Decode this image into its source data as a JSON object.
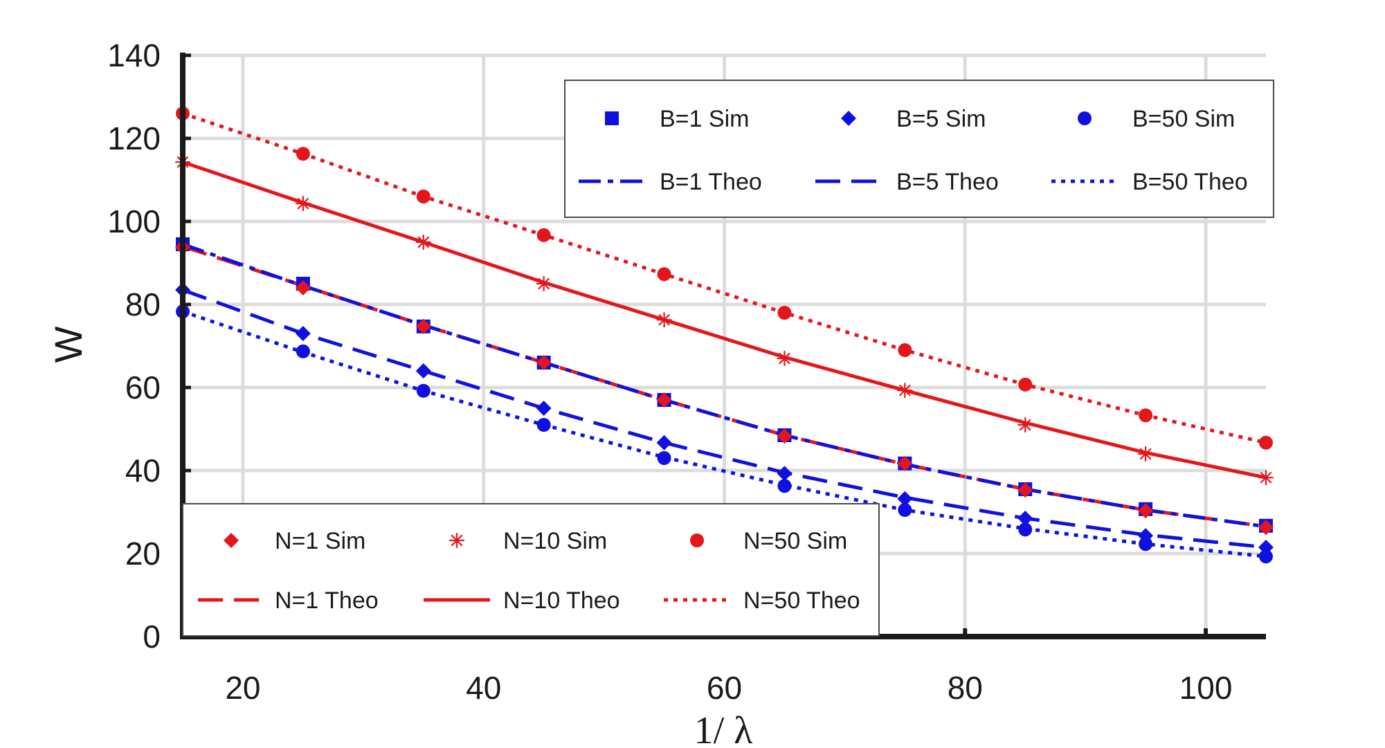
{
  "chart_data": {
    "type": "line",
    "title": "",
    "xlabel": "1/ λ",
    "ylabel": "W",
    "xlim": [
      15,
      105
    ],
    "ylim": [
      0,
      140
    ],
    "grid": true,
    "xticks": [
      20,
      40,
      60,
      80,
      100
    ],
    "yticks": [
      0,
      20,
      40,
      60,
      80,
      100,
      120,
      140
    ],
    "x": [
      15,
      25,
      35,
      45,
      55,
      65,
      75,
      85,
      95,
      105
    ],
    "colors": {
      "red": "#e4161b",
      "blue": "#1010e0"
    },
    "series": [
      {
        "name": "B=1 Sim",
        "color": "blue",
        "marker": "square",
        "values": [
          94.5,
          85,
          74.7,
          66,
          57,
          48.5,
          41.7,
          35.5,
          30.7,
          26.7
        ]
      },
      {
        "name": "B=5 Sim",
        "color": "blue",
        "marker": "diamond",
        "values": [
          83.5,
          73,
          64,
          55,
          46.7,
          39.3,
          33.2,
          28.5,
          24.3,
          21.5
        ]
      },
      {
        "name": "B=50 Sim",
        "color": "blue",
        "marker": "circle",
        "values": [
          78.3,
          68.7,
          59.2,
          51,
          43,
          36.3,
          30.5,
          25.8,
          22.3,
          19.3
        ]
      },
      {
        "name": "B=1 Theo",
        "color": "blue",
        "dash": "dashdot",
        "values": [
          94.5,
          84.5,
          75,
          66,
          57,
          48.5,
          41.5,
          35.5,
          30.5,
          26.5
        ]
      },
      {
        "name": "B=5 Theo",
        "color": "blue",
        "dash": "dashed",
        "values": [
          83.5,
          73,
          64,
          55,
          46.7,
          39.5,
          33.5,
          28.5,
          24.5,
          21.5
        ]
      },
      {
        "name": "B=50 Theo",
        "color": "blue",
        "dash": "dotted",
        "values": [
          78.3,
          68.5,
          59.2,
          51,
          43.2,
          36.5,
          30.5,
          26,
          22.3,
          19.3
        ]
      },
      {
        "name": "N=1 Sim",
        "color": "red",
        "marker": "diamond",
        "values": [
          93.8,
          84,
          74.7,
          66,
          57,
          48.3,
          41.7,
          35.3,
          30.3,
          26.3
        ]
      },
      {
        "name": "N=10 Sim",
        "color": "red",
        "marker": "star",
        "values": [
          114.3,
          104.3,
          95,
          85,
          76.3,
          67,
          59.3,
          51,
          44,
          38.3
        ]
      },
      {
        "name": "N=50 Sim",
        "color": "red",
        "marker": "circle",
        "values": [
          126,
          116.3,
          106,
          96.7,
          87.3,
          78,
          69,
          60.7,
          53.3,
          46.7
        ]
      },
      {
        "name": "N=1 Theo",
        "color": "red",
        "dash": "dashed",
        "values": [
          94,
          84.5,
          75,
          66,
          57,
          48.5,
          41.5,
          35.5,
          30.5,
          26.5
        ]
      },
      {
        "name": "N=10 Theo",
        "color": "red",
        "dash": "solid",
        "values": [
          114.3,
          104.5,
          95,
          85.3,
          76.3,
          67.3,
          59.3,
          51.5,
          44.3,
          38.3
        ]
      },
      {
        "name": "N=50 Theo",
        "color": "red",
        "dash": "dotted",
        "values": [
          126,
          116.3,
          106,
          96.7,
          87.3,
          78,
          69,
          60.7,
          53.3,
          46.7
        ]
      }
    ],
    "legends": [
      {
        "name": "B-legend",
        "position": "top-right",
        "order": [
          "B=1 Sim",
          "B=5 Sim",
          "B=50 Sim",
          "B=1 Theo",
          "B=5 Theo",
          "B=50 Theo"
        ]
      },
      {
        "name": "N-legend",
        "position": "bottom-left",
        "order": [
          "N=1 Sim",
          "N=10 Sim",
          "N=50 Sim",
          "N=1 Theo",
          "N=10 Theo",
          "N=50 Theo"
        ]
      }
    ]
  }
}
